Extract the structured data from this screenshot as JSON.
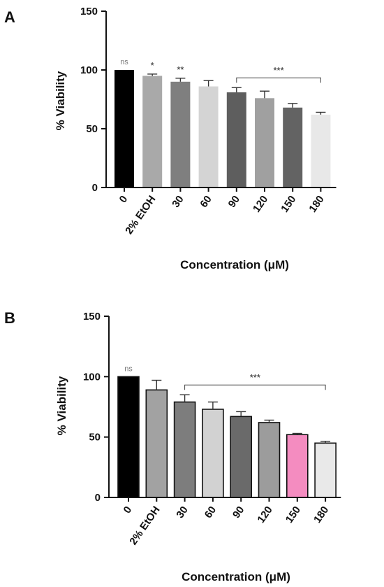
{
  "chart_data": [
    {
      "type": "bar",
      "panel_label": "A",
      "categories": [
        "0",
        "2% EtOH",
        "30",
        "60",
        "90",
        "120",
        "150",
        "180"
      ],
      "values": [
        100,
        95,
        90,
        86,
        81,
        76,
        68,
        62
      ],
      "errors": [
        0,
        1.5,
        3,
        5,
        4,
        6,
        3.5,
        2
      ],
      "colors": [
        "#000000",
        "#a9a9a9",
        "#7f7f7f",
        "#d4d4d4",
        "#5e5e5e",
        "#a0a0a0",
        "#636363",
        "#e8e8e8"
      ],
      "bar_outline": false,
      "annotations": [
        "ns",
        "*",
        "**",
        "",
        "",
        "",
        "",
        ""
      ],
      "bracket": {
        "from": "90",
        "to": "180",
        "label": "***"
      },
      "xlabel": "Concentration (μM)",
      "ylabel": "% Viability",
      "ylim": [
        0,
        150
      ],
      "yticks": [
        0,
        50,
        100,
        150
      ]
    },
    {
      "type": "bar",
      "panel_label": "B",
      "categories": [
        "0",
        "2% EtOH",
        "30",
        "60",
        "90",
        "120",
        "150",
        "180"
      ],
      "values": [
        100,
        89,
        79,
        73,
        67,
        62,
        52,
        45
      ],
      "errors": [
        0,
        8,
        6,
        6,
        4,
        2,
        1,
        1.5
      ],
      "colors": [
        "#000000",
        "#a2a2a2",
        "#7d7d7d",
        "#d2d2d2",
        "#6a6a6a",
        "#9c9c9c",
        "#f48cc0",
        "#e9e9e9"
      ],
      "bar_outline": true,
      "annotations": [
        "ns",
        "",
        "",
        "",
        "",
        "",
        "",
        ""
      ],
      "bracket": {
        "from": "30",
        "to": "180",
        "label": "***"
      },
      "xlabel": "Concentration (μM)",
      "ylabel": "% Viability",
      "ylim": [
        0,
        150
      ],
      "yticks": [
        0,
        50,
        100,
        150
      ]
    }
  ]
}
